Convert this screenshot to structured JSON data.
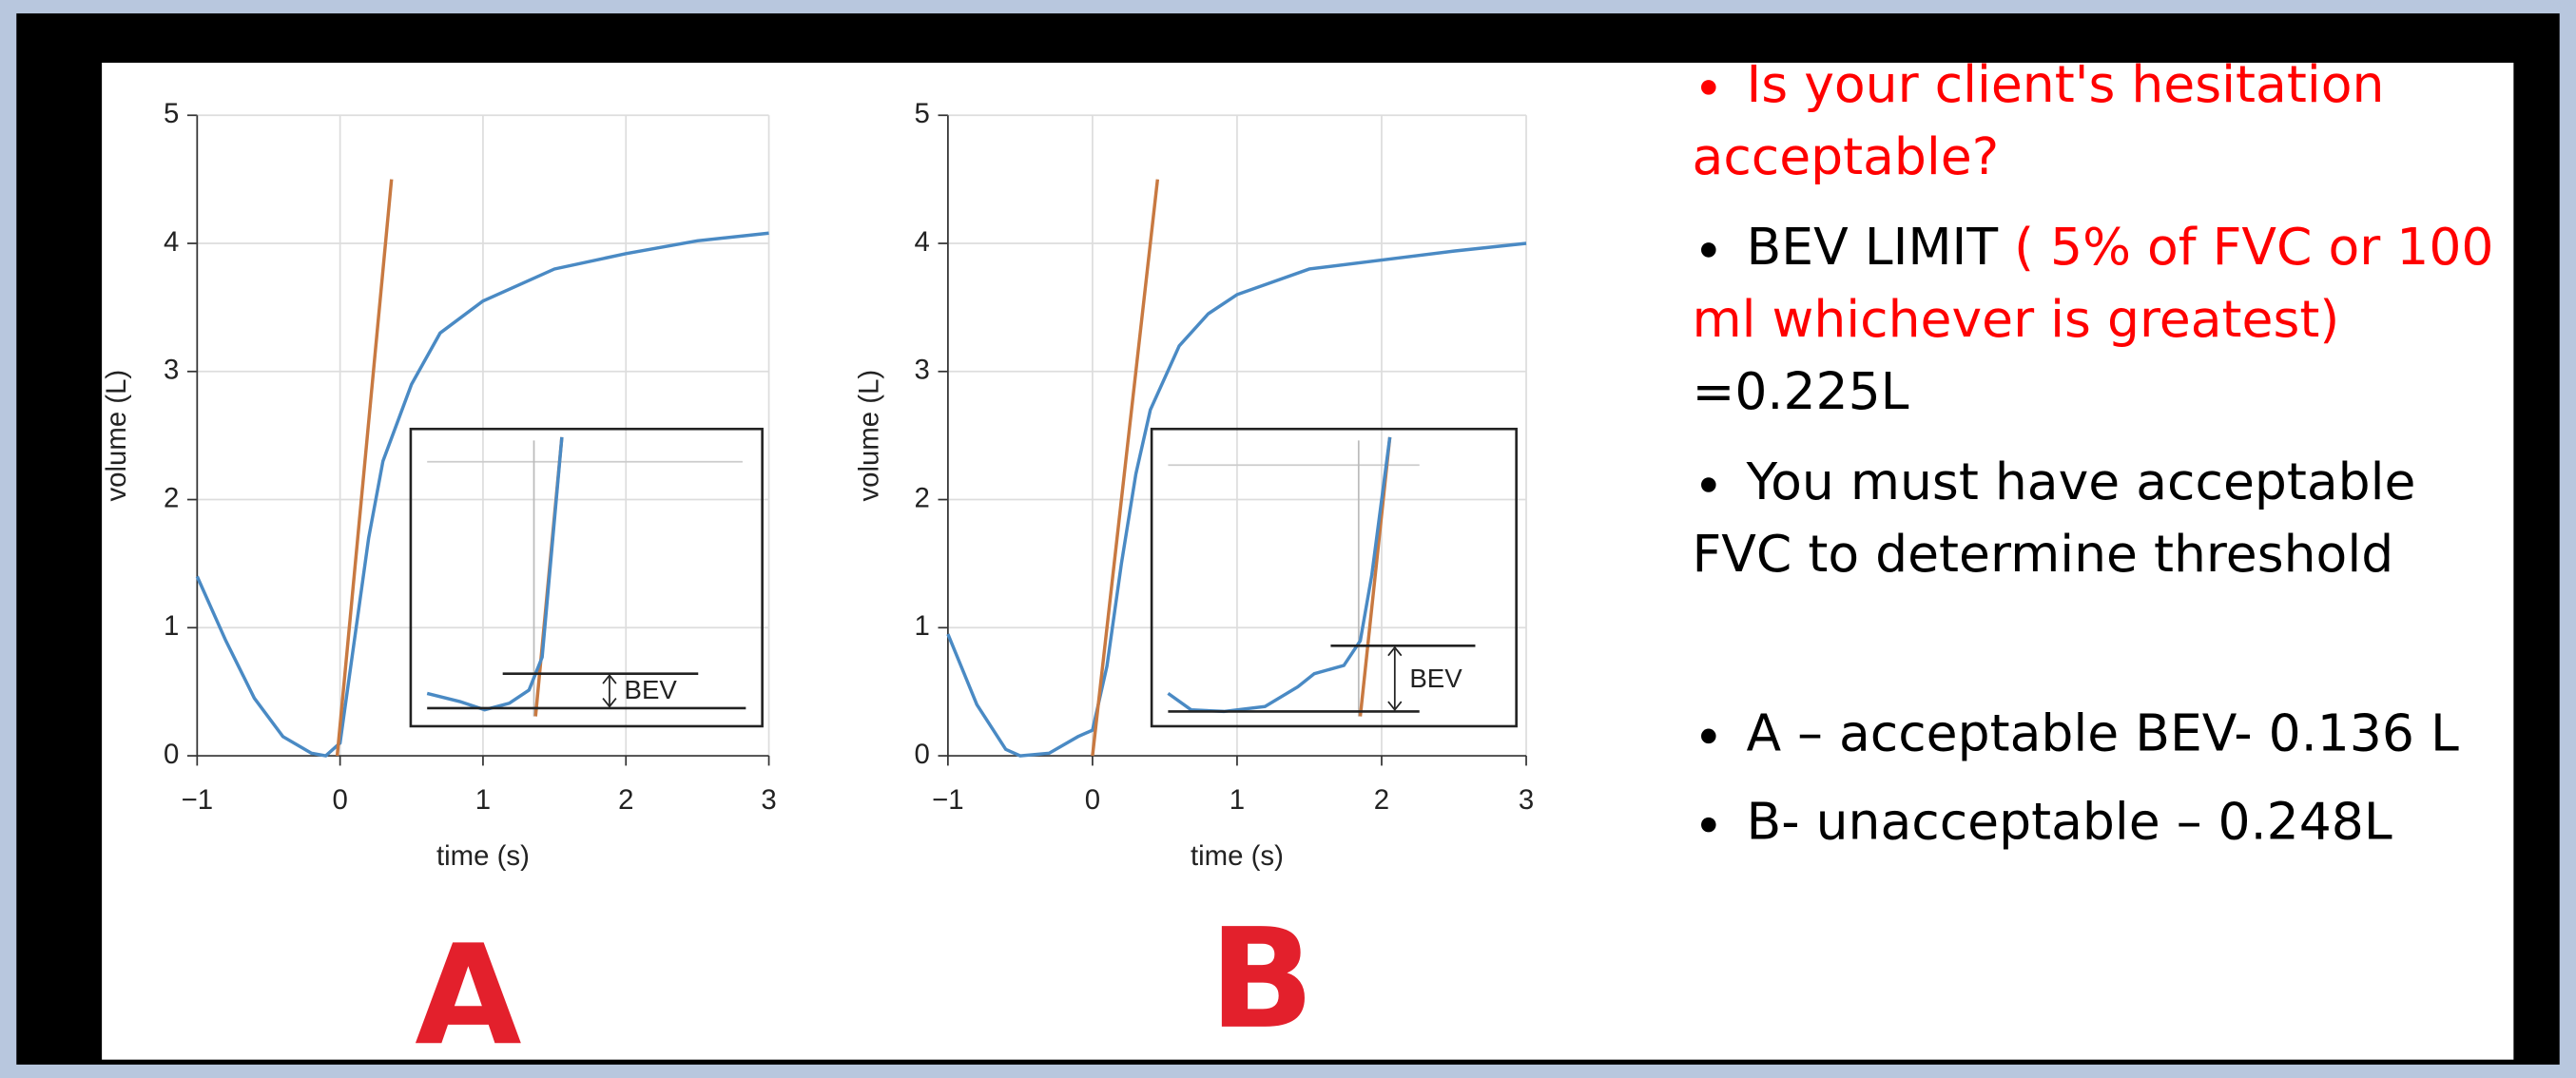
{
  "chart_data": [
    {
      "type": "line",
      "xlabel": "time (s)",
      "ylabel": "volume (L)",
      "annotation": "BEV",
      "label": "A",
      "xlim": [
        -1,
        3
      ],
      "ylim": [
        0,
        5
      ],
      "xticks": [
        {
          "value": -1,
          "label": "−1"
        },
        0,
        1,
        2,
        3
      ],
      "yticks": [
        0,
        1,
        2,
        3,
        4,
        5
      ],
      "grid": true,
      "series": [
        {
          "color": "#4a8ac4",
          "x": [
            -1,
            -0.8,
            -0.6,
            -0.4,
            -0.2,
            -0.1,
            0,
            0.1,
            0.2,
            0.3,
            0.5,
            0.7,
            1,
            1.5,
            2,
            2.5,
            3
          ],
          "values": [
            1.4,
            0.9,
            0.45,
            0.15,
            0.02,
            0,
            0.1,
            0.9,
            1.7,
            2.3,
            2.9,
            3.3,
            3.55,
            3.8,
            3.92,
            4.02,
            4.08
          ]
        },
        {
          "color": "#c87941",
          "x": [
            -0.02,
            0.36
          ],
          "values": [
            0,
            4.5
          ]
        }
      ]
    },
    {
      "type": "line",
      "xlabel": "time (s)",
      "ylabel": "volume (L)",
      "annotation": "BEV",
      "label": "B",
      "xlim": [
        -1,
        3
      ],
      "ylim": [
        0,
        5
      ],
      "xticks": [
        {
          "value": -1,
          "label": "−1"
        },
        0,
        1,
        2,
        3
      ],
      "yticks": [
        0,
        1,
        2,
        3,
        4,
        5
      ],
      "grid": true,
      "series": [
        {
          "color": "#4a8ac4",
          "x": [
            -1,
            -0.8,
            -0.6,
            -0.5,
            -0.3,
            -0.1,
            0,
            0.1,
            0.2,
            0.3,
            0.4,
            0.6,
            0.8,
            1,
            1.5,
            2,
            2.5,
            3
          ],
          "values": [
            0.95,
            0.4,
            0.05,
            0,
            0.02,
            0.15,
            0.2,
            0.7,
            1.5,
            2.2,
            2.7,
            3.2,
            3.45,
            3.6,
            3.8,
            3.87,
            3.94,
            4.0
          ]
        },
        {
          "color": "#c87941",
          "x": [
            0,
            0.45
          ],
          "values": [
            0,
            4.5
          ]
        }
      ]
    }
  ],
  "text_panel": {
    "bullets": [
      {
        "lines": [
          [
            {
              "text": "Is your client's hesitation",
              "color": "#ff0000"
            }
          ],
          [
            {
              "text": "acceptable?",
              "color": "#ff0000"
            }
          ]
        ]
      },
      {
        "lines": [
          [
            {
              "text": "BEV LIMIT ",
              "color": "#000000"
            },
            {
              "text": "( 5% of FVC or 100",
              "color": "#ff0000"
            }
          ],
          [
            {
              "text": "ml whichever is greatest)",
              "color": "#ff0000"
            }
          ],
          [
            {
              "text": "=0.225L",
              "color": "#000000"
            }
          ]
        ]
      },
      {
        "lines": [
          [
            {
              "text": "You must have acceptable",
              "color": "#000000"
            }
          ],
          [
            {
              "text": "FVC to determine threshold",
              "color": "#000000"
            }
          ]
        ]
      },
      {
        "lines": [
          [
            {
              "text": "A – acceptable BEV- 0.136 L",
              "color": "#000000"
            }
          ]
        ]
      },
      {
        "lines": [
          [
            {
              "text": "B- unacceptable – 0.248L",
              "color": "#000000"
            }
          ]
        ]
      }
    ]
  }
}
